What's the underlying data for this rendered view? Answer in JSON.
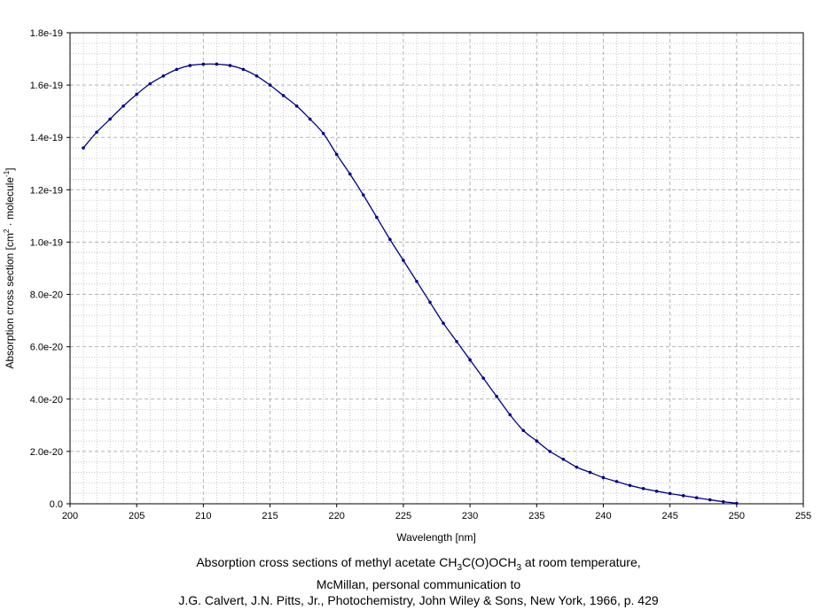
{
  "chart_data": {
    "type": "line",
    "title": "",
    "xlabel": "Wavelength [nm]",
    "ylabel": {
      "prefix": "Absorption cross section [cm",
      "sup1": "2",
      "mid": " · molecule",
      "sup2": "-1",
      "suffix": "]"
    },
    "xlim": [
      200,
      255
    ],
    "ylim": [
      0,
      1.8e-19
    ],
    "x_ticks": [
      200,
      205,
      210,
      215,
      220,
      225,
      230,
      235,
      240,
      245,
      250,
      255
    ],
    "x_tick_labels": [
      "200",
      "205",
      "210",
      "215",
      "220",
      "225",
      "230",
      "235",
      "240",
      "245",
      "250",
      "255"
    ],
    "y_ticks": [
      0,
      2e-20,
      4e-20,
      6e-20,
      8e-20,
      1e-19,
      1.2e-19,
      1.4e-19,
      1.6e-19,
      1.8e-19
    ],
    "y_tick_labels": [
      "0.0",
      "2.0e-20",
      "4.0e-20",
      "6.0e-20",
      "8.0e-20",
      "1.0e-19",
      "1.2e-19",
      "1.4e-19",
      "1.6e-19",
      "1.8e-19"
    ],
    "grid": true,
    "series_color": "#00008b",
    "series": [
      {
        "x": [
          201,
          202,
          203,
          204,
          205,
          206,
          207,
          208,
          209,
          210,
          211,
          212,
          213,
          214,
          215,
          216,
          217,
          218,
          219,
          220,
          221,
          222,
          223,
          224,
          225,
          226,
          227,
          228,
          229,
          230,
          231,
          232,
          233,
          234,
          235,
          236,
          237,
          238,
          239,
          240,
          241,
          242,
          243,
          244,
          245,
          246,
          247,
          248,
          249,
          250
        ],
        "y": [
          1.36e-19,
          1.42e-19,
          1.47e-19,
          1.52e-19,
          1.565e-19,
          1.605e-19,
          1.635e-19,
          1.66e-19,
          1.675e-19,
          1.68e-19,
          1.68e-19,
          1.675e-19,
          1.66e-19,
          1.635e-19,
          1.6e-19,
          1.56e-19,
          1.52e-19,
          1.47e-19,
          1.415e-19,
          1.335e-19,
          1.26e-19,
          1.18e-19,
          1.095e-19,
          1.01e-19,
          9.3e-20,
          8.5e-20,
          7.7e-20,
          6.9e-20,
          6.2e-20,
          5.5e-20,
          4.8e-20,
          4.1e-20,
          3.4e-20,
          2.8e-20,
          2.4e-20,
          2e-20,
          1.7e-20,
          1.4e-20,
          1.2e-20,
          1e-20,
          8.5e-21,
          7e-21,
          5.8e-21,
          4.8e-21,
          3.9e-21,
          3.1e-21,
          2.3e-21,
          1.5e-21,
          8e-22,
          2e-22
        ]
      }
    ]
  },
  "caption": {
    "line1_a": "Absorption cross sections of methyl acetate CH",
    "line1_sub1": "3",
    "line1_b": "C(O)OCH",
    "line1_sub2": "3",
    "line1_c": " at room temperature,",
    "line2": "McMillan, personal communication to",
    "line3": "J.G. Calvert, J.N. Pitts, Jr., Photochemistry, John Wiley & Sons, New York, 1966, p. 429"
  }
}
